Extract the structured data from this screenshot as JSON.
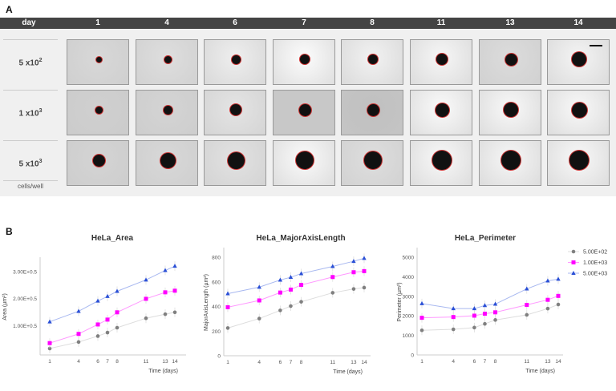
{
  "panel_a": {
    "label": "A",
    "header_label": "day",
    "days": [
      "1",
      "4",
      "6",
      "7",
      "8",
      "11",
      "13",
      "14"
    ],
    "rows": [
      {
        "base": "5 x10",
        "exp": "2"
      },
      {
        "base": "1 x10",
        "exp": "3"
      },
      {
        "base": "5 x10",
        "exp": "3"
      }
    ],
    "footer": "cells/well"
  },
  "panel_b": {
    "label": "B"
  },
  "colors": {
    "5.00E+02": "#808080",
    "1.00E+03": "#ff00ff",
    "5.00E+03": "#2a4fd6"
  },
  "chart_data": [
    {
      "type": "line",
      "title": "HeLa_Area",
      "xlabel": "Time (days)",
      "ylabel": "Area (µm²)",
      "x": [
        1,
        4,
        6,
        7,
        8,
        11,
        13,
        14
      ],
      "yticks": [
        {
          "v": 1,
          "label": "1.00E+0.5"
        },
        {
          "v": 2,
          "label": "2.00E+0.5"
        },
        {
          "v": 3,
          "label": "3.00E+0.5"
        }
      ],
      "ylim": [
        0,
        3.5
      ],
      "series": [
        {
          "name": "5.00E+02",
          "values": [
            0.15,
            0.39,
            0.61,
            0.74,
            0.92,
            1.27,
            1.42,
            1.49
          ]
        },
        {
          "name": "1.00E+03",
          "values": [
            0.35,
            0.69,
            1.04,
            1.22,
            1.49,
            1.99,
            2.23,
            2.29
          ]
        },
        {
          "name": "5.00E+03",
          "values": [
            1.14,
            1.53,
            1.91,
            2.08,
            2.27,
            2.69,
            3.04,
            3.2
          ]
        }
      ]
    },
    {
      "type": "line",
      "title": "HeLa_MajorAxisLength",
      "xlabel": "Time (days)",
      "ylabel": "MajorAxisLength (µm²)",
      "x": [
        1,
        4,
        6,
        7,
        8,
        11,
        13,
        14
      ],
      "yticks": [
        {
          "v": 0,
          "label": "0"
        },
        {
          "v": 200,
          "label": "200"
        },
        {
          "v": 400,
          "label": "400"
        },
        {
          "v": 600,
          "label": "600"
        },
        {
          "v": 800,
          "label": "800"
        }
      ],
      "ylim": [
        0,
        800
      ],
      "series": [
        {
          "name": "5.00E+02",
          "values": [
            225,
            302,
            368,
            403,
            438,
            511,
            542,
            553
          ]
        },
        {
          "name": "1.00E+03",
          "values": [
            394,
            449,
            513,
            537,
            575,
            639,
            678,
            687
          ]
        },
        {
          "name": "5.00E+03",
          "values": [
            504,
            557,
            615,
            637,
            667,
            725,
            767,
            791
          ]
        }
      ]
    },
    {
      "type": "line",
      "title": "HeLa_Perimeter",
      "xlabel": "Time (days)",
      "ylabel": "Perimeter (µm²)",
      "x": [
        1,
        4,
        6,
        7,
        8,
        11,
        13,
        14
      ],
      "yticks": [
        {
          "v": 0,
          "label": "0"
        },
        {
          "v": 1000,
          "label": "1000"
        },
        {
          "v": 2000,
          "label": "2000"
        },
        {
          "v": 3000,
          "label": "3000"
        },
        {
          "v": 4000,
          "label": "4000"
        },
        {
          "v": 5000,
          "label": "5000"
        }
      ],
      "ylim": [
        0,
        5000
      ],
      "legend": "right",
      "series": [
        {
          "name": "5.00E+02",
          "values": [
            1260,
            1310,
            1400,
            1590,
            1790,
            2050,
            2370,
            2580
          ]
        },
        {
          "name": "1.00E+03",
          "values": [
            1900,
            1940,
            2010,
            2110,
            2180,
            2560,
            2820,
            3020
          ]
        },
        {
          "name": "5.00E+03",
          "values": [
            2630,
            2370,
            2370,
            2530,
            2600,
            3380,
            3790,
            3880
          ]
        }
      ]
    }
  ]
}
